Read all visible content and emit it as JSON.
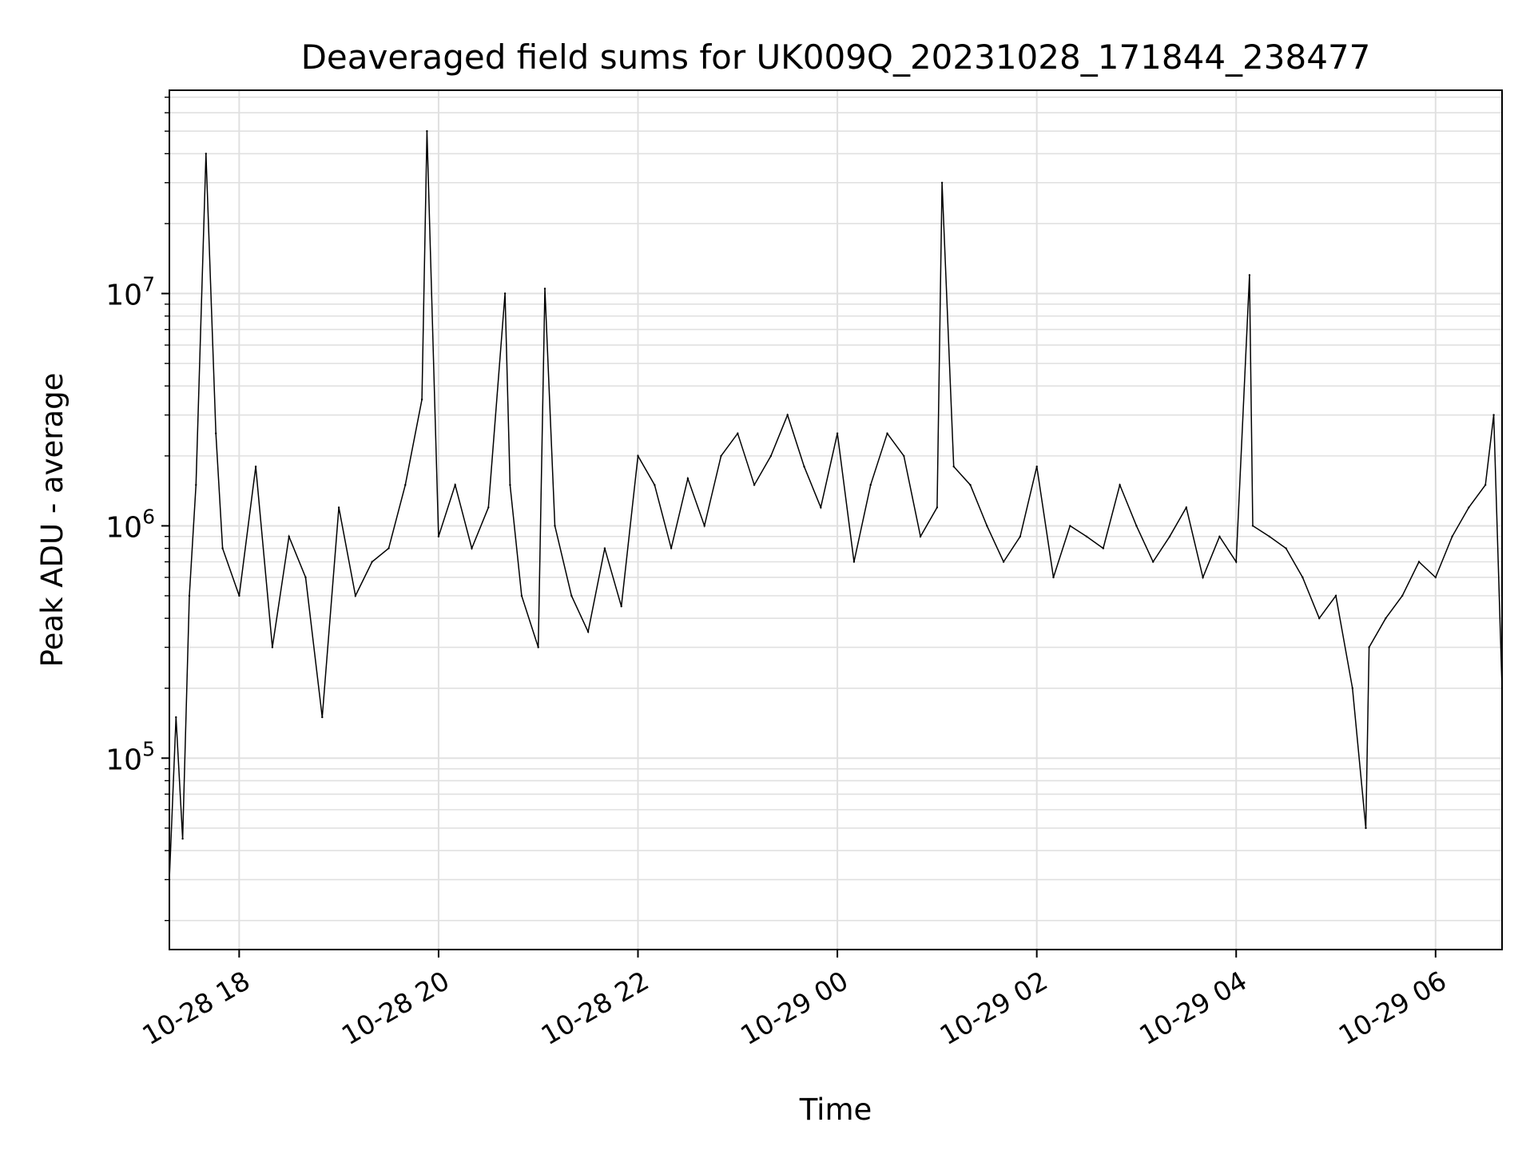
{
  "colors": {
    "line": "#000000",
    "grid": "#e0e0e0",
    "axis": "#000000",
    "background": "#ffffff"
  },
  "chart_data": {
    "type": "line",
    "title": "Deaveraged field sums for UK009Q_20231028_171844_238477",
    "xlabel": "Time",
    "ylabel": "Peak ADU - average",
    "yscale": "log",
    "xlim": [
      "2023-10-28 17:18",
      "2023-10-29 06:40"
    ],
    "ylim": [
      15000,
      75000000
    ],
    "grid": true,
    "x_ticks": [
      {
        "value": "2023-10-28 18:00",
        "label": "10-28 18"
      },
      {
        "value": "2023-10-28 20:00",
        "label": "10-28 20"
      },
      {
        "value": "2023-10-28 22:00",
        "label": "10-28 22"
      },
      {
        "value": "2023-10-29 00:00",
        "label": "10-29 00"
      },
      {
        "value": "2023-10-29 02:00",
        "label": "10-29 02"
      },
      {
        "value": "2023-10-29 04:00",
        "label": "10-29 04"
      },
      {
        "value": "2023-10-29 06:00",
        "label": "10-29 06"
      }
    ],
    "y_ticks": [
      {
        "value": 100000,
        "base": "10",
        "exp": "5"
      },
      {
        "value": 1000000,
        "base": "10",
        "exp": "6"
      },
      {
        "value": 10000000,
        "base": "10",
        "exp": "7"
      }
    ],
    "series": [
      {
        "color": "#000000",
        "x": [
          "2023-10-28 17:18",
          "2023-10-28 17:22",
          "2023-10-28 17:26",
          "2023-10-28 17:30",
          "2023-10-28 17:34",
          "2023-10-28 17:40",
          "2023-10-28 17:46",
          "2023-10-28 17:50",
          "2023-10-28 18:00",
          "2023-10-28 18:10",
          "2023-10-28 18:20",
          "2023-10-28 18:30",
          "2023-10-28 18:40",
          "2023-10-28 18:50",
          "2023-10-28 19:00",
          "2023-10-28 19:10",
          "2023-10-28 19:20",
          "2023-10-28 19:30",
          "2023-10-28 19:40",
          "2023-10-28 19:50",
          "2023-10-28 19:53",
          "2023-10-28 20:00",
          "2023-10-28 20:10",
          "2023-10-28 20:20",
          "2023-10-28 20:30",
          "2023-10-28 20:40",
          "2023-10-28 20:43",
          "2023-10-28 20:50",
          "2023-10-28 21:00",
          "2023-10-28 21:04",
          "2023-10-28 21:10",
          "2023-10-28 21:20",
          "2023-10-28 21:30",
          "2023-10-28 21:40",
          "2023-10-28 21:50",
          "2023-10-28 22:00",
          "2023-10-28 22:10",
          "2023-10-28 22:20",
          "2023-10-28 22:30",
          "2023-10-28 22:40",
          "2023-10-28 22:50",
          "2023-10-28 23:00",
          "2023-10-28 23:10",
          "2023-10-28 23:20",
          "2023-10-28 23:30",
          "2023-10-28 23:40",
          "2023-10-28 23:50",
          "2023-10-29 00:00",
          "2023-10-29 00:10",
          "2023-10-29 00:20",
          "2023-10-29 00:30",
          "2023-10-29 00:40",
          "2023-10-29 00:50",
          "2023-10-29 01:00",
          "2023-10-29 01:03",
          "2023-10-29 01:10",
          "2023-10-29 01:20",
          "2023-10-29 01:30",
          "2023-10-29 01:40",
          "2023-10-29 01:50",
          "2023-10-29 02:00",
          "2023-10-29 02:10",
          "2023-10-29 02:20",
          "2023-10-29 02:30",
          "2023-10-29 02:40",
          "2023-10-29 02:50",
          "2023-10-29 03:00",
          "2023-10-29 03:10",
          "2023-10-29 03:20",
          "2023-10-29 03:30",
          "2023-10-29 03:40",
          "2023-10-29 03:50",
          "2023-10-29 04:00",
          "2023-10-29 04:08",
          "2023-10-29 04:10",
          "2023-10-29 04:20",
          "2023-10-29 04:30",
          "2023-10-29 04:40",
          "2023-10-29 04:50",
          "2023-10-29 05:00",
          "2023-10-29 05:10",
          "2023-10-29 05:18",
          "2023-10-29 05:20",
          "2023-10-29 05:30",
          "2023-10-29 05:40",
          "2023-10-29 05:50",
          "2023-10-29 06:00",
          "2023-10-29 06:10",
          "2023-10-29 06:20",
          "2023-10-29 06:30",
          "2023-10-29 06:35",
          "2023-10-29 06:40"
        ],
        "y": [
          30000,
          150000,
          45000,
          500000,
          1500000,
          40000000,
          2500000,
          800000,
          500000,
          1800000,
          300000,
          900000,
          600000,
          150000,
          1200000,
          500000,
          700000,
          800000,
          1500000,
          3500000,
          50000000,
          900000,
          1500000,
          800000,
          1200000,
          10000000,
          1500000,
          500000,
          300000,
          10500000,
          1000000,
          500000,
          350000,
          800000,
          450000,
          2000000,
          1500000,
          800000,
          1600000,
          1000000,
          2000000,
          2500000,
          1500000,
          2000000,
          3000000,
          1800000,
          1200000,
          2500000,
          700000,
          1500000,
          2500000,
          2000000,
          900000,
          1200000,
          30000000,
          1800000,
          1500000,
          1000000,
          700000,
          900000,
          1800000,
          600000,
          1000000,
          900000,
          800000,
          1500000,
          1000000,
          700000,
          900000,
          1200000,
          600000,
          900000,
          700000,
          12000000,
          1000000,
          900000,
          800000,
          600000,
          400000,
          500000,
          200000,
          50000,
          300000,
          400000,
          500000,
          700000,
          600000,
          900000,
          1200000,
          1500000,
          3000000,
          200000
        ]
      }
    ]
  }
}
